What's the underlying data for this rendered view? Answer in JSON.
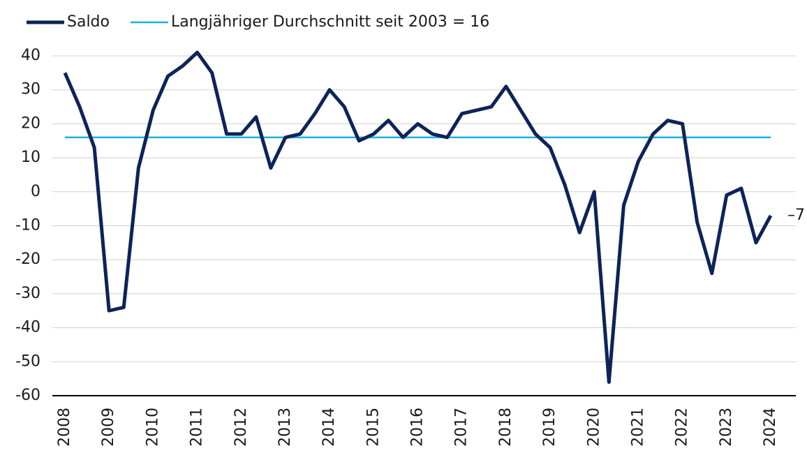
{
  "chart_data": {
    "type": "line",
    "categories": [
      "2008",
      null,
      null,
      "2009",
      null,
      null,
      "2010",
      null,
      null,
      "2011",
      null,
      null,
      "2012",
      null,
      null,
      "2013",
      null,
      null,
      "2014",
      null,
      null,
      "2015",
      null,
      null,
      "2016",
      null,
      null,
      "2017",
      null,
      null,
      "2018",
      null,
      null,
      "2019",
      null,
      null,
      "2020",
      null,
      null,
      "2021",
      null,
      null,
      "2022",
      null,
      null,
      "2023",
      null,
      null,
      "2024"
    ],
    "series": [
      {
        "name": "Saldo",
        "color": "#0d2359",
        "values": [
          35,
          25,
          13,
          -35,
          -34,
          7,
          24,
          34,
          37,
          41,
          35,
          17,
          17,
          22,
          7,
          16,
          17,
          23,
          30,
          25,
          15,
          17,
          21,
          16,
          20,
          17,
          16,
          23,
          24,
          25,
          31,
          24,
          17,
          13,
          2,
          -12,
          0,
          -56,
          -4,
          9,
          17,
          21,
          20,
          -9,
          -24,
          -1,
          1,
          -15,
          -7
        ],
        "value_labels": [
          null,
          null,
          null,
          null,
          null,
          null,
          null,
          null,
          null,
          null,
          null,
          null,
          null,
          null,
          null,
          null,
          null,
          null,
          null,
          null,
          null,
          null,
          null,
          null,
          null,
          null,
          null,
          null,
          null,
          null,
          null,
          null,
          null,
          null,
          null,
          null,
          null,
          null,
          null,
          null,
          null,
          null,
          null,
          null,
          null,
          null,
          null,
          null,
          "–7"
        ]
      },
      {
        "name": "Langjähriger Durchschnitt seit 2003 = 16",
        "color": "#1ab0e0",
        "values": [
          16,
          16,
          16,
          16,
          16,
          16,
          16,
          16,
          16,
          16,
          16,
          16,
          16,
          16,
          16,
          16,
          16,
          16,
          16,
          16,
          16,
          16,
          16,
          16,
          16,
          16,
          16,
          16,
          16,
          16,
          16,
          16,
          16,
          16,
          16,
          16,
          16,
          16,
          16,
          16,
          16,
          16,
          16,
          16,
          16,
          16,
          16,
          16,
          16
        ]
      }
    ],
    "ylim": [
      -60,
      40
    ],
    "yticks": [
      -60,
      -50,
      -40,
      -30,
      -20,
      -10,
      0,
      10,
      20,
      30,
      40
    ],
    "grid": true
  }
}
